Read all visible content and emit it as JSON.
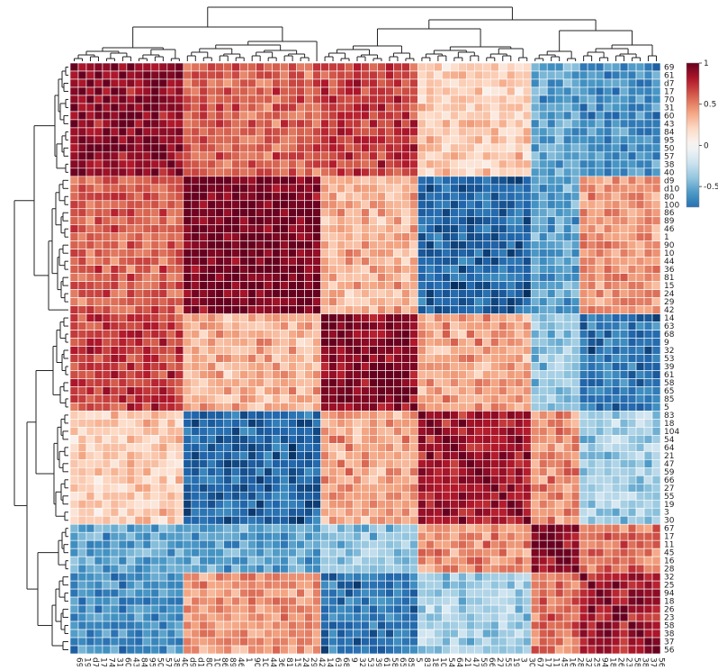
{
  "chart_data": {
    "type": "heatmap",
    "title": "",
    "clustered": true,
    "row_labels": [
      "69",
      "61",
      "d7",
      "17",
      "70",
      "31",
      "60",
      "43",
      "84",
      "95",
      "50",
      "57",
      "38",
      "40",
      "d9",
      "d10",
      "80",
      "100",
      "86",
      "89",
      "46",
      "1",
      "90",
      "10",
      "44",
      "36",
      "81",
      "15",
      "24",
      "29",
      "42",
      "14",
      "63",
      "68",
      "9",
      "32",
      "53",
      "39",
      "61",
      "58",
      "65",
      "85",
      "5",
      "83",
      "18",
      "104",
      "54",
      "64",
      "21",
      "47",
      "59",
      "66",
      "27",
      "55",
      "19",
      "3",
      "30",
      "67",
      "17",
      "11",
      "45",
      "16",
      "28",
      "32",
      "25",
      "94",
      "18",
      "26",
      "23",
      "58",
      "38",
      "37",
      "56"
    ],
    "col_labels": [
      "69",
      "19",
      "d7",
      "17",
      "74",
      "31",
      "60",
      "43",
      "84",
      "95",
      "50",
      "57",
      "38",
      "40",
      "d9",
      "d10",
      "80",
      "100",
      "86",
      "89",
      "46",
      "1",
      "90",
      "10",
      "44",
      "36",
      "81",
      "15",
      "24",
      "29",
      "42",
      "14",
      "63",
      "68",
      "9",
      "32",
      "53",
      "39",
      "61",
      "58",
      "65",
      "85",
      "5",
      "83",
      "18",
      "104",
      "54",
      "64",
      "21",
      "47",
      "59",
      "66",
      "27",
      "55",
      "19",
      "3",
      "30",
      "67",
      "17",
      "11",
      "45",
      "16",
      "28",
      "32",
      "25",
      "94",
      "18",
      "26",
      "23",
      "58",
      "38",
      "37",
      "56"
    ],
    "block_sizes": [
      14,
      17,
      12,
      14,
      6,
      10
    ],
    "block_matrix": [
      [
        0.9,
        0.6,
        0.7,
        0.25,
        -0.55,
        -0.65
      ],
      [
        0.6,
        0.95,
        0.35,
        -0.8,
        -0.55,
        0.45
      ],
      [
        0.7,
        0.35,
        0.92,
        0.4,
        -0.4,
        -0.75
      ],
      [
        0.25,
        -0.8,
        0.4,
        0.85,
        0.45,
        -0.35
      ],
      [
        -0.55,
        -0.55,
        -0.4,
        0.45,
        0.9,
        0.55
      ],
      [
        -0.65,
        0.45,
        -0.75,
        -0.35,
        0.55,
        0.85
      ]
    ],
    "colorbar": {
      "range": [
        -0.75,
        1.0
      ],
      "tick_labels": [
        "1",
        "0.5",
        "0",
        "-0.5"
      ],
      "tick_values": [
        1,
        0.5,
        0,
        -0.5
      ],
      "colors": [
        "#053061",
        "#2166ac",
        "#4393c3",
        "#92c5de",
        "#d1e5f0",
        "#f7f7f7",
        "#fddbc7",
        "#f4a582",
        "#d6604d",
        "#b2182b",
        "#67001f"
      ]
    },
    "dendrogram": {
      "rows": true,
      "columns": true
    }
  }
}
